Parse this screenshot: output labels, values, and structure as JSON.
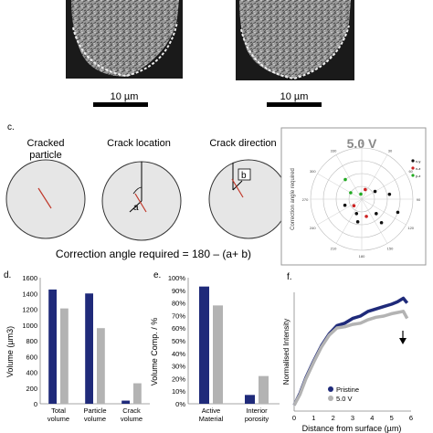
{
  "panel_top": {
    "scalebar_left": "10 µm",
    "scalebar_right": "10 µm"
  },
  "panel_c": {
    "letter": "c.",
    "cracked_particle_label": "Cracked\nparticle",
    "crack_location_label": "Crack location",
    "crack_direction_label": "Crack direction",
    "angle_a": "a",
    "angle_b": "b",
    "formula": "Correction angle required = 180 – (a+ b)",
    "polar_title": "5.0 V",
    "polar_ylabel": "Correction angle required",
    "legend": [
      {
        "label": "x-y",
        "color": "#111111"
      },
      {
        "label": "x-z",
        "color": "#cc2222"
      },
      {
        "label": "y-z",
        "color": "#22aa22"
      }
    ],
    "polar_ticks": [
      "0",
      "30",
      "60",
      "90",
      "120",
      "150",
      "180",
      "210",
      "240",
      "270",
      "300",
      "330"
    ]
  },
  "colors": {
    "pristine": "#1f2a7a",
    "charged": "#b3b3b3"
  },
  "chart_data": [
    {
      "panel": "d.",
      "type": "bar",
      "categories": [
        "Total\nvolume",
        "Particle\nvolume",
        "Crack\nvolume"
      ],
      "series": [
        {
          "values": [
            1450,
            1400,
            40
          ]
        },
        {
          "values": [
            1210,
            960,
            260
          ]
        }
      ],
      "ylabel": "Volume (µm3)",
      "ylim": [
        0,
        1600
      ],
      "yticks": [
        "0",
        "200",
        "400",
        "600",
        "800",
        "1000",
        "1200",
        "1400",
        "1600"
      ]
    },
    {
      "panel": "e.",
      "type": "bar",
      "categories": [
        "Active\nMaterial",
        "Interior\nporosity"
      ],
      "series": [
        {
          "values": [
            93,
            7
          ]
        },
        {
          "values": [
            78,
            22
          ]
        }
      ],
      "ylabel": "Volume Comp. / %",
      "ylim": [
        0,
        100
      ],
      "yticks": [
        "0%",
        "10%",
        "20%",
        "30%",
        "40%",
        "50%",
        "60%",
        "70%",
        "80%",
        "90%",
        "100%"
      ]
    },
    {
      "panel": "f.",
      "type": "line",
      "xlabel": "Distance from surface (µm)",
      "ylabel": "Normalised Intensity",
      "xlim": [
        0,
        6
      ],
      "xticks": [
        "0",
        "1",
        "2",
        "3",
        "4",
        "5",
        "6"
      ],
      "series": [
        {
          "name": "Pristine",
          "x": [
            0,
            0.3,
            0.6,
            1.0,
            1.4,
            1.8,
            2.2,
            2.6,
            3.0,
            3.4,
            3.8,
            4.2,
            4.6,
            5.0,
            5.3,
            5.6,
            5.8
          ],
          "y": [
            0.05,
            0.15,
            0.28,
            0.42,
            0.55,
            0.65,
            0.72,
            0.74,
            0.78,
            0.8,
            0.84,
            0.86,
            0.88,
            0.9,
            0.92,
            0.95,
            0.91
          ]
        },
        {
          "name": "5.0 V",
          "x": [
            0,
            0.3,
            0.6,
            1.0,
            1.4,
            1.8,
            2.2,
            2.6,
            3.0,
            3.4,
            3.8,
            4.2,
            4.6,
            5.0,
            5.3,
            5.6,
            5.8
          ],
          "y": [
            0.05,
            0.14,
            0.27,
            0.41,
            0.54,
            0.64,
            0.7,
            0.71,
            0.73,
            0.74,
            0.77,
            0.79,
            0.8,
            0.82,
            0.83,
            0.84,
            0.78
          ]
        }
      ]
    }
  ]
}
